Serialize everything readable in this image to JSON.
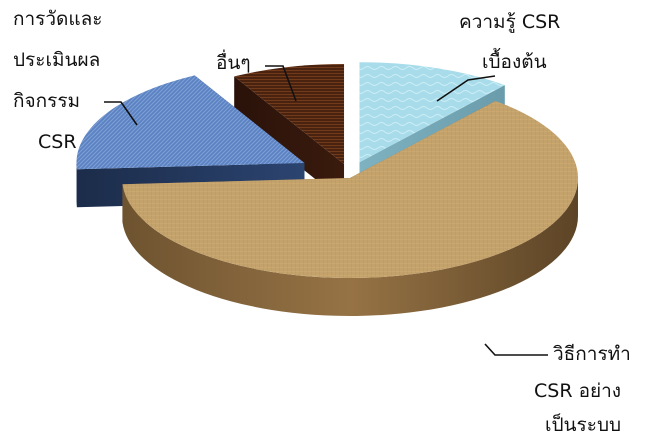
{
  "chart_data": {
    "type": "pie",
    "style": "3d-exploded",
    "title": "",
    "slices": [
      {
        "label_lines": [
          "ความรู้ CSR",
          "เบื้องต้น"
        ],
        "value": 11,
        "color": "#a8dcea",
        "texture": "water"
      },
      {
        "label_lines": [
          "วิธีการทำ",
          "CSR อย่าง",
          "เป็นระบบ"
        ],
        "value": 63,
        "color": "#c7a36b",
        "texture": "burlap"
      },
      {
        "label_lines": [
          "การวัดและ",
          "ประเมินผล",
          "กิจกรรม",
          "CSR"
        ],
        "value": 18,
        "color": "#5a82c2",
        "texture": "denim"
      },
      {
        "label_lines": [
          "อื่นๆ"
        ],
        "value": 8,
        "color": "#4a2210",
        "texture": "wood"
      }
    ]
  }
}
